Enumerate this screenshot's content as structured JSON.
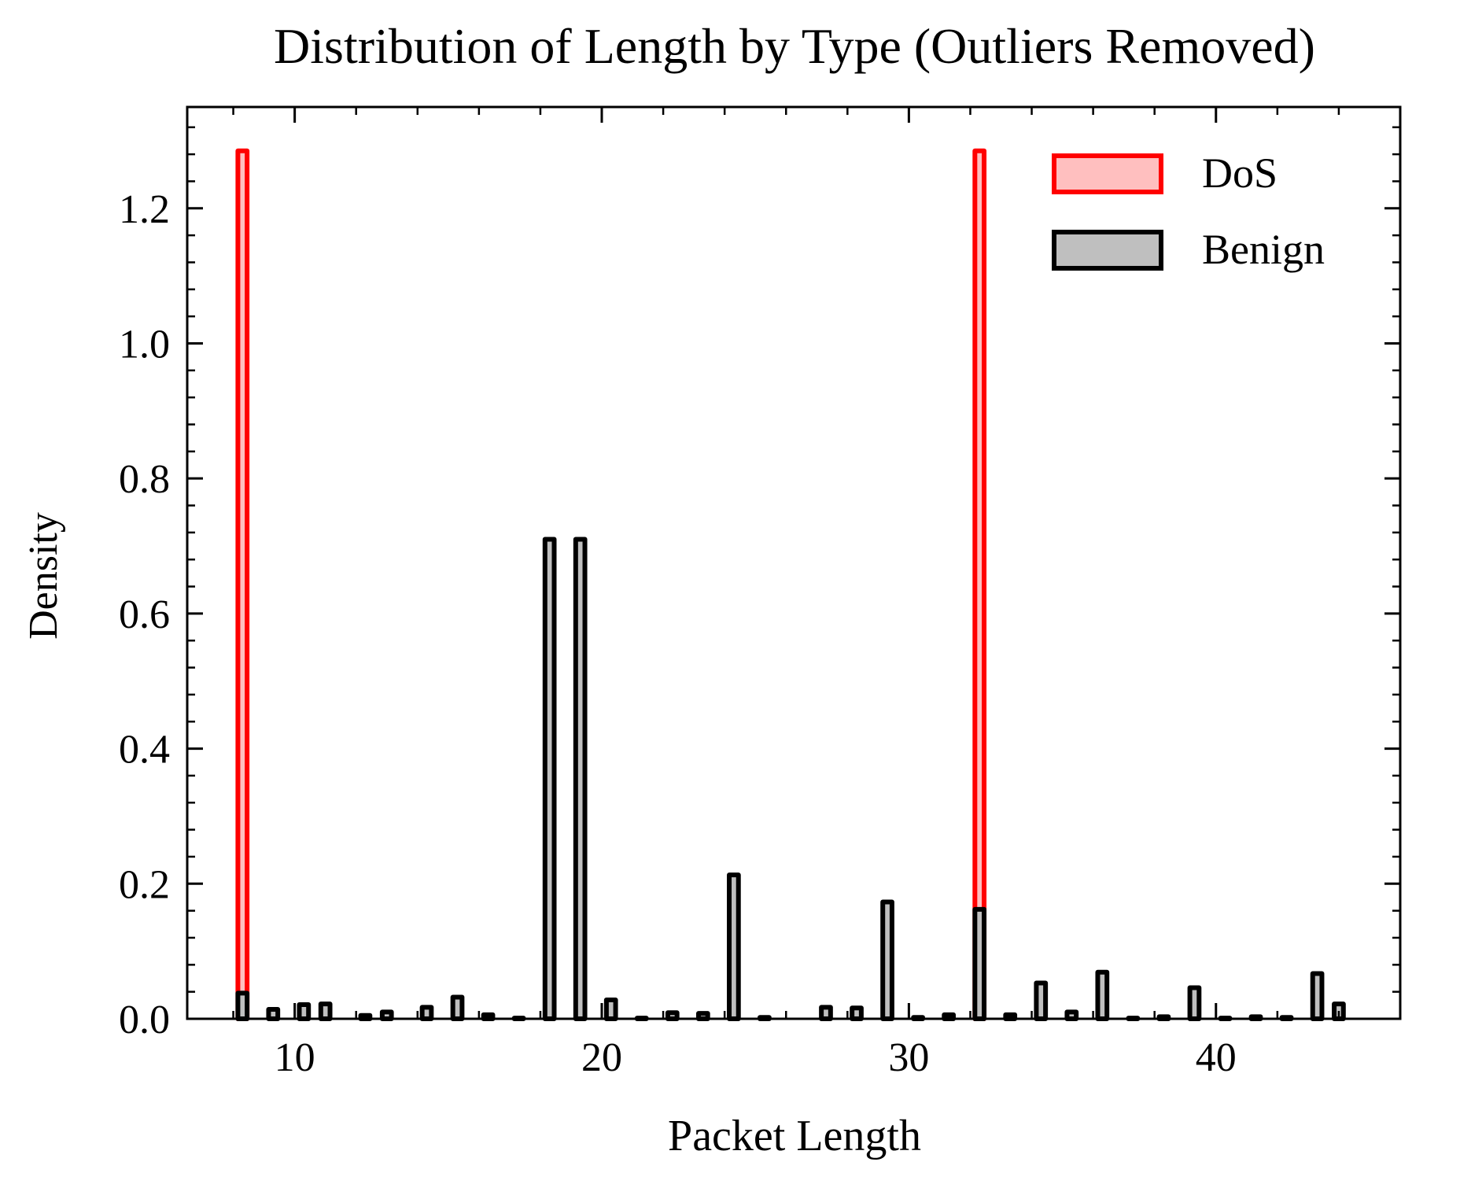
{
  "chart_data": {
    "type": "bar",
    "title": "Distribution of Length by Type (Outliers Removed)",
    "xlabel": "Packet Length",
    "ylabel": "Density",
    "xlim": [
      6.5,
      46
    ],
    "ylim": [
      0,
      1.35
    ],
    "xticks": [
      10,
      20,
      30,
      40
    ],
    "xtick_labels": [
      "10",
      "20",
      "30",
      "40"
    ],
    "yticks": [
      0,
      0.2,
      0.4,
      0.6,
      0.8,
      1.0,
      1.2
    ],
    "ytick_labels": [
      "0.0",
      "0.2",
      "0.4",
      "0.6",
      "0.8",
      "1.0",
      "1.2"
    ],
    "bin_width": 0.3,
    "grid": false,
    "legend_position": "top-right",
    "series": [
      {
        "name": "DoS",
        "fill": "#ffbfbf",
        "edge": "#ff0000",
        "x": [
          8.3,
          32.3
        ],
        "values": [
          1.285,
          1.285
        ]
      },
      {
        "name": "Benign",
        "fill": "#bfbfbf",
        "edge": "#000000",
        "x": [
          8.3,
          9.3,
          10.3,
          11.0,
          12.3,
          13.0,
          14.3,
          15.3,
          16.3,
          17.3,
          18.3,
          19.3,
          20.3,
          21.3,
          22.3,
          23.3,
          24.3,
          25.3,
          27.3,
          28.3,
          29.3,
          30.3,
          31.3,
          32.3,
          33.3,
          34.3,
          35.3,
          36.3,
          37.3,
          38.3,
          39.3,
          40.3,
          41.3,
          42.3,
          43.3,
          44.0
        ],
        "values": [
          0.038,
          0.014,
          0.021,
          0.022,
          0.005,
          0.01,
          0.017,
          0.032,
          0.006,
          0.001,
          0.71,
          0.71,
          0.028,
          0.001,
          0.009,
          0.008,
          0.213,
          0.002,
          0.017,
          0.016,
          0.173,
          0.002,
          0.006,
          0.162,
          0.006,
          0.053,
          0.01,
          0.069,
          0.001,
          0.003,
          0.046,
          0.001,
          0.003,
          0.002,
          0.067,
          0.022
        ]
      }
    ]
  }
}
